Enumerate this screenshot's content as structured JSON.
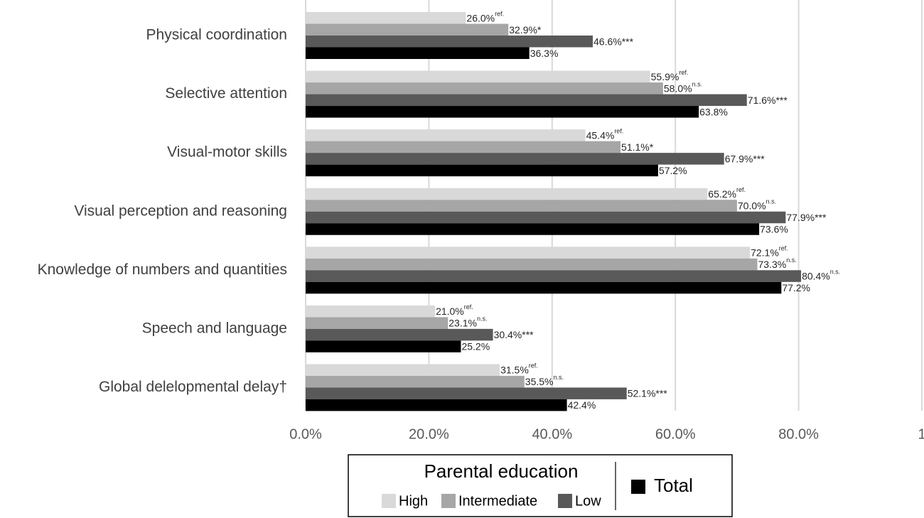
{
  "chart_data": {
    "type": "hbar",
    "categories": [
      "Physical coordination",
      "Selective attention",
      "Visual-motor skills",
      "Visual perception and reasoning",
      "Knowledge of numbers and quantities",
      "Speech and language",
      "Global delelopmental delay†"
    ],
    "series": [
      {
        "name": "High",
        "color": "#d9d9d9",
        "values": [
          0.26,
          0.559,
          0.454,
          0.652,
          0.721,
          0.21,
          0.315
        ],
        "value_labels": [
          "26.0%",
          "55.9%",
          "45.4%",
          "65.2%",
          "72.1%",
          "21.0%",
          "31.5%"
        ],
        "notes": [
          "ref.",
          "ref.",
          "ref.",
          "ref.",
          "ref.",
          "ref.",
          "ref."
        ]
      },
      {
        "name": "Intermediate",
        "color": "#a6a6a6",
        "values": [
          0.329,
          0.58,
          0.511,
          0.7,
          0.733,
          0.231,
          0.355
        ],
        "value_labels": [
          "32.9%*",
          "58.0%",
          "51.1%*",
          "70.0%",
          "73.3%",
          "23.1%",
          "35.5%"
        ],
        "notes": [
          null,
          "n.s.",
          null,
          "n.s.",
          "n.s.",
          "n.s.",
          "n.s."
        ]
      },
      {
        "name": "Low",
        "color": "#595959",
        "values": [
          0.466,
          0.716,
          0.679,
          0.779,
          0.804,
          0.304,
          0.521
        ],
        "value_labels": [
          "46.6%***",
          "71.6%***",
          "67.9%***",
          "77.9%***",
          "80.4%",
          "30.4%***",
          "52.1%***"
        ],
        "notes": [
          null,
          null,
          null,
          null,
          "n.s.",
          null,
          null
        ]
      },
      {
        "name": "Total",
        "color": "#000000",
        "values": [
          0.363,
          0.638,
          0.572,
          0.736,
          0.772,
          0.252,
          0.424
        ],
        "value_labels": [
          "36.3%",
          "63.8%",
          "57.2%",
          "73.6%",
          "77.2%",
          "25.2%",
          "42.4%"
        ]
      }
    ],
    "xlim": [
      0,
      1
    ],
    "xticks": [
      {
        "value": 0,
        "label": "0.0%"
      },
      {
        "value": 0.2,
        "label": "20.0%"
      },
      {
        "value": 0.4,
        "label": "40.0%"
      },
      {
        "value": 0.6,
        "label": "60.0%"
      },
      {
        "value": 0.8,
        "label": "80.0%"
      },
      1
    ],
    "grid": true,
    "legend_title": "Parental education"
  }
}
